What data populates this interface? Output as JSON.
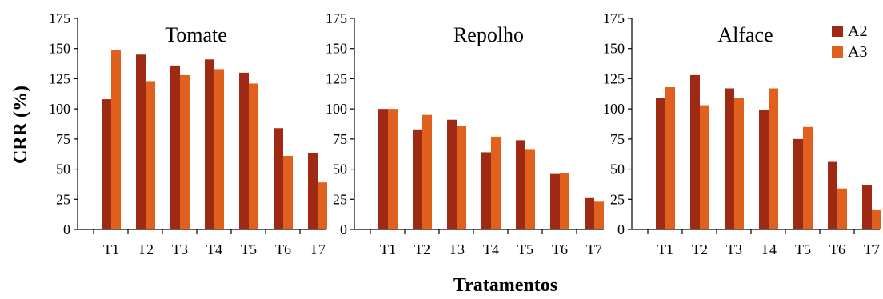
{
  "figure": {
    "ylabel": "CRR (%)",
    "xlabel": "Tratamentos"
  },
  "legend": {
    "entries": [
      {
        "name": "A2",
        "color": "#9e2a14"
      },
      {
        "name": "A3",
        "color": "#e0601e"
      }
    ]
  },
  "chart_data": [
    {
      "type": "bar",
      "title": "Tomate",
      "categories": [
        "T1",
        "T2",
        "T3",
        "T4",
        "T5",
        "T6",
        "T7"
      ],
      "ylim": [
        0,
        175
      ],
      "yticks": [
        0,
        25,
        50,
        75,
        100,
        125,
        150,
        175
      ],
      "series": [
        {
          "name": "A2",
          "values": [
            108,
            145,
            136,
            141,
            130,
            84,
            63
          ]
        },
        {
          "name": "A3",
          "values": [
            149,
            123,
            128,
            133,
            121,
            61,
            39
          ]
        }
      ]
    },
    {
      "type": "bar",
      "title": "Repolho",
      "categories": [
        "T1",
        "T2",
        "T3",
        "T4",
        "T5",
        "T6",
        "T7"
      ],
      "ylim": [
        0,
        175
      ],
      "yticks": [
        0,
        25,
        50,
        75,
        100,
        125,
        150,
        175
      ],
      "series": [
        {
          "name": "A2",
          "values": [
            100,
            83,
            91,
            64,
            74,
            46,
            26
          ]
        },
        {
          "name": "A3",
          "values": [
            100,
            95,
            86,
            77,
            66,
            47,
            23
          ]
        }
      ]
    },
    {
      "type": "bar",
      "title": "Alface",
      "categories": [
        "T1",
        "T2",
        "T3",
        "T4",
        "T5",
        "T6",
        "T7"
      ],
      "ylim": [
        0,
        175
      ],
      "yticks": [
        0,
        25,
        50,
        75,
        100,
        125,
        150,
        175
      ],
      "series": [
        {
          "name": "A2",
          "values": [
            109,
            128,
            117,
            99,
            75,
            56,
            37
          ]
        },
        {
          "name": "A3",
          "values": [
            118,
            103,
            109,
            117,
            85,
            34,
            16
          ]
        }
      ]
    }
  ]
}
